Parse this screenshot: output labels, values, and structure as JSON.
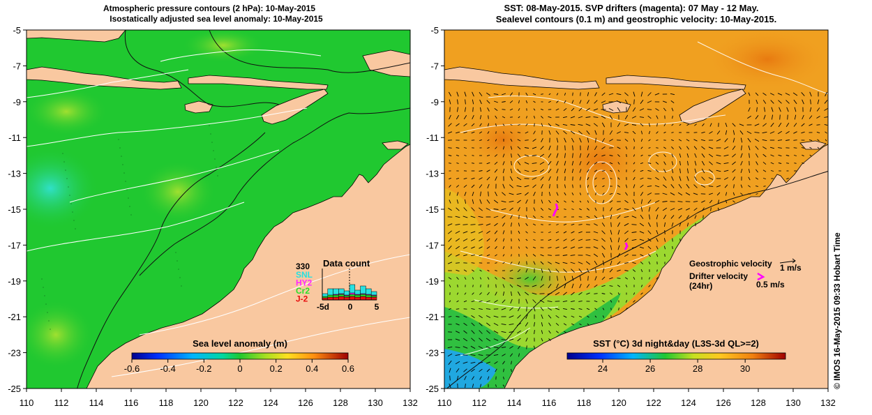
{
  "left_panel": {
    "title_line1": "Atmospheric pressure contours (2 hPa): 10-May-2015",
    "title_line2": "Isostatically adjusted sea level anomaly: 10-May-2015",
    "colorbar": {
      "title": "Sea level anomaly (m)",
      "ticks": [
        "-0.6",
        "-0.4",
        "-0.2",
        "0",
        "0.2",
        "0.4",
        "0.6"
      ]
    },
    "data_count": {
      "title": "Data count",
      "max_label": "330",
      "satellites": [
        {
          "label": "SNL",
          "color": "#28e0e0"
        },
        {
          "label": "HY2",
          "color": "#ff28ff"
        },
        {
          "label": "Cr2",
          "color": "#28e028"
        },
        {
          "label": "J-2",
          "color": "#e81010"
        }
      ],
      "x_ticks": [
        "-5d",
        "0",
        "5"
      ]
    }
  },
  "right_panel": {
    "title_line1": "SST: 08-May-2015. SVP drifters (magenta): 07 May - 12 May.",
    "title_line2": "Sealevel contours (0.1 m) and geostrophic velocity: 10-May-2015.",
    "legend": {
      "geostrophic_label": "Geostrophic velocity",
      "geostrophic_scale": "1 m/s",
      "drifter_label_1": "Drifter velocity",
      "drifter_label_2": "(24hr)",
      "drifter_scale": "0.5 m/s"
    },
    "colorbar": {
      "title": "SST (°C) 3d night&day (L3S-3d QL>=2)",
      "ticks": [
        "24",
        "26",
        "28",
        "30"
      ]
    }
  },
  "axes": {
    "y_ticks": [
      "-5",
      "-7",
      "-9",
      "-11",
      "-13",
      "-15",
      "-17",
      "-19",
      "-21",
      "-23",
      "-25"
    ],
    "x_ticks": [
      "110",
      "112",
      "114",
      "116",
      "118",
      "120",
      "122",
      "124",
      "126",
      "128",
      "130",
      "132"
    ]
  },
  "credit": "© IMOS 16-May-2015 09:33 Hobart Time",
  "colors": {
    "land": "#f9c8a0",
    "sla_ocean": "#20c830",
    "sst_ocean": "#f0a020",
    "drifter": "#ff00ff",
    "contour_white": "#ffffff",
    "contour_black": "#101010"
  }
}
